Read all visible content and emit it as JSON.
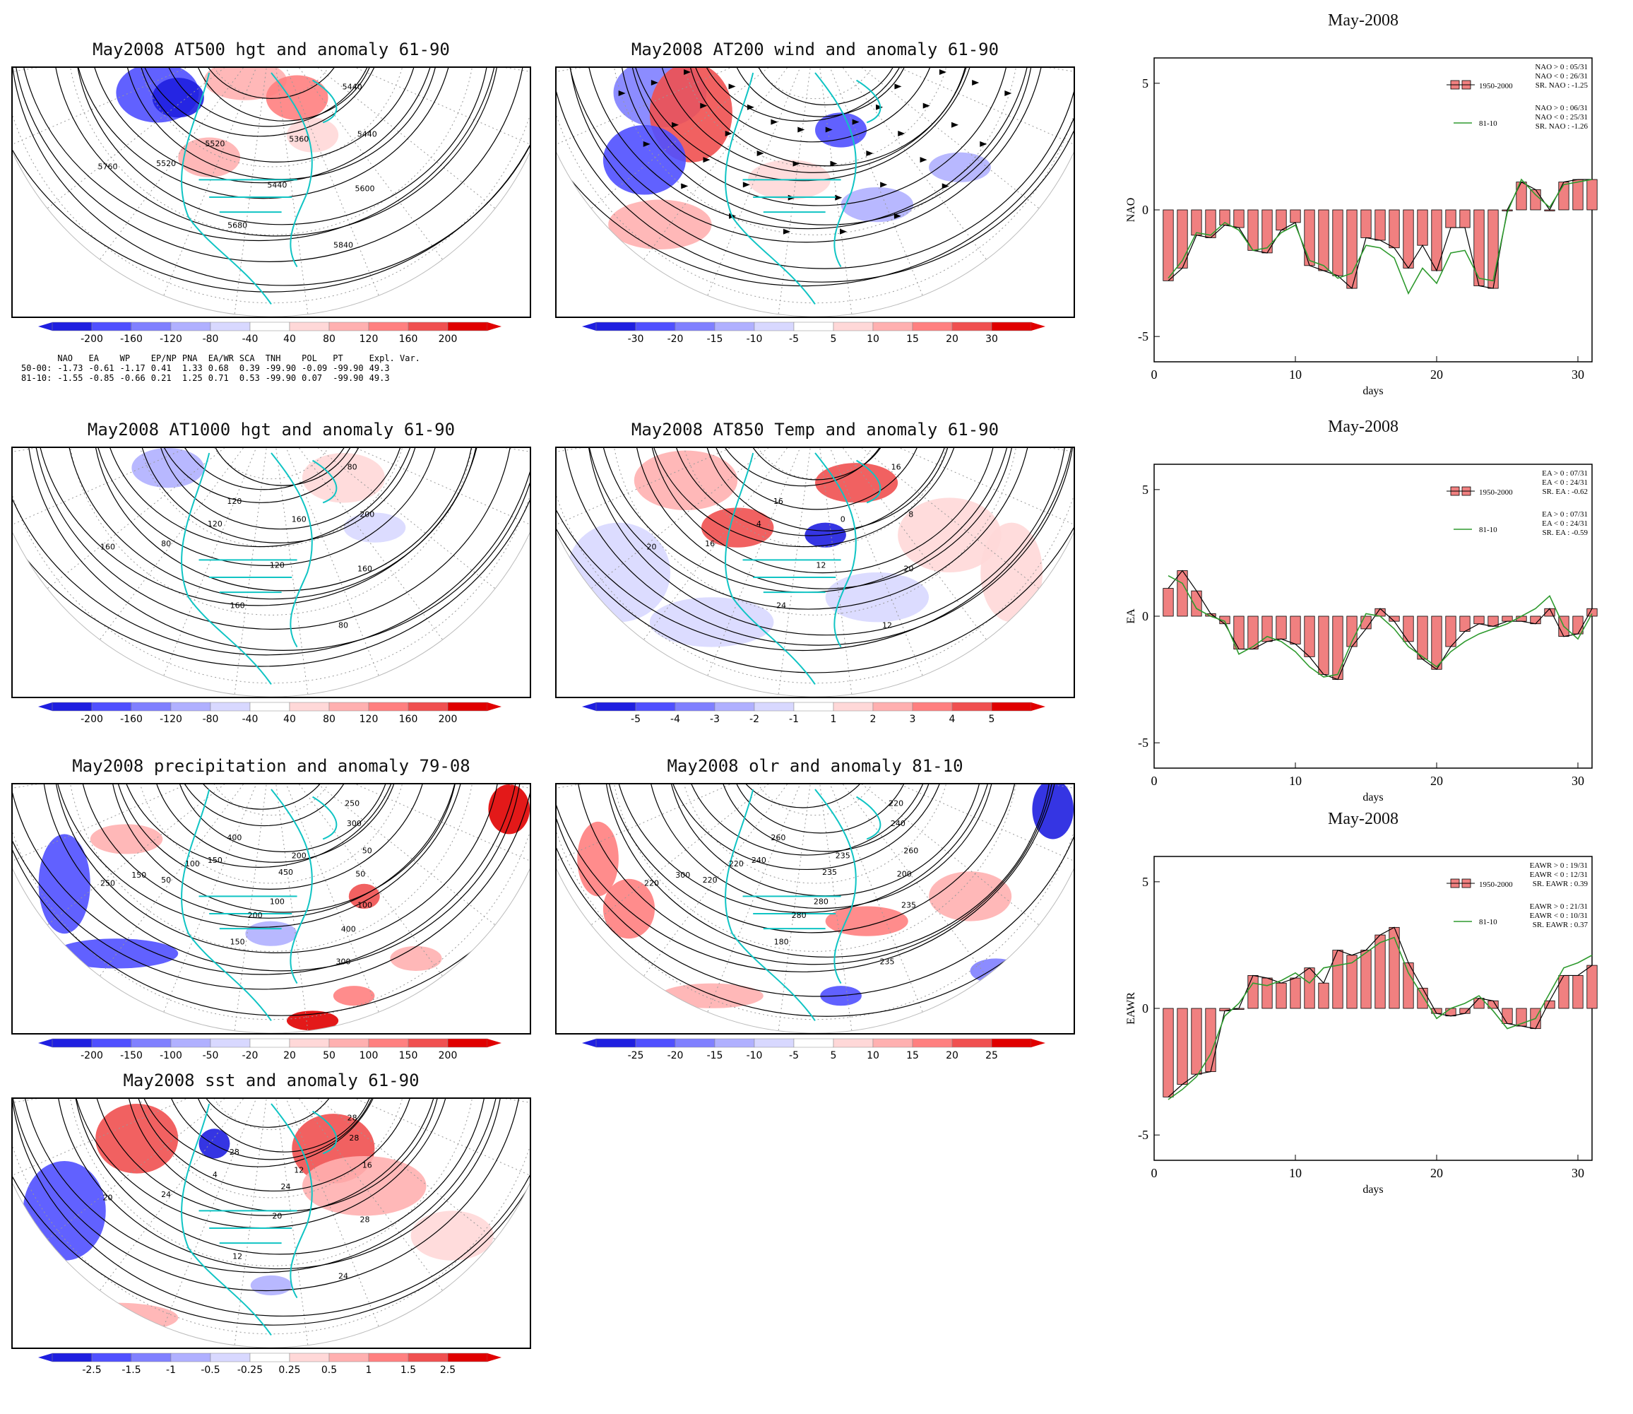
{
  "maps": [
    {
      "id": "hgt500",
      "title": "May2008 AT500 hgt and anomaly 61-90",
      "contours": [
        "5440",
        "5360",
        "5520",
        "5440",
        "5440",
        "5520",
        "5600",
        "5680",
        "5760",
        "5840"
      ],
      "colorbar": {
        "labels": [
          "-200",
          "-160",
          "-120",
          "-80",
          "-40",
          "40",
          "80",
          "120",
          "160",
          "200"
        ]
      }
    },
    {
      "id": "wind200",
      "title": "May2008 AT200 wind and anomaly 61-90",
      "contours": [],
      "colorbar": {
        "labels": [
          "-30",
          "-20",
          "-15",
          "-10",
          "-5",
          "5",
          "10",
          "15",
          "20",
          "30"
        ]
      }
    },
    {
      "id": "hgt1000",
      "title": "May2008 AT1000 hgt and anomaly 61-90",
      "contours": [
        "80",
        "160",
        "120",
        "200",
        "120",
        "80",
        "160",
        "160",
        "160",
        "80",
        "120"
      ],
      "colorbar": {
        "labels": [
          "-200",
          "-160",
          "-120",
          "-80",
          "-40",
          "40",
          "80",
          "120",
          "160",
          "200"
        ]
      }
    },
    {
      "id": "t850",
      "title": "May2008 AT850 Temp and anomaly 61-90",
      "contours": [
        "16",
        "0",
        "4",
        "8",
        "12",
        "16",
        "20",
        "24",
        "20",
        "12",
        "16"
      ],
      "colorbar": {
        "labels": [
          "-5",
          "-4",
          "-3",
          "-2",
          "-1",
          "1",
          "2",
          "3",
          "4",
          "5"
        ]
      }
    },
    {
      "id": "prcp",
      "title": "May2008 precipitation and anomaly 79-08",
      "contours": [
        "250",
        "200",
        "150",
        "50",
        "100",
        "50",
        "100",
        "150",
        "250",
        "300",
        "400",
        "300",
        "450",
        "100",
        "50",
        "200",
        "150",
        "400"
      ],
      "colorbar": {
        "labels": [
          "-200",
          "-150",
          "-100",
          "-50",
          "-20",
          "20",
          "50",
          "100",
          "150",
          "200"
        ]
      }
    },
    {
      "id": "olr",
      "title": "May2008 olr and anomaly 81-10",
      "contours": [
        "220",
        "235",
        "240",
        "260",
        "280",
        "220",
        "235",
        "180",
        "220",
        "235",
        "260",
        "240",
        "235",
        "220",
        "200",
        "280",
        "300"
      ],
      "colorbar": {
        "labels": [
          "-25",
          "-20",
          "-15",
          "-10",
          "-5",
          "5",
          "10",
          "15",
          "20",
          "25"
        ]
      }
    },
    {
      "id": "sst",
      "title": "May2008 sst and anomaly 61-90",
      "contours": [
        "28",
        "12",
        "4",
        "16",
        "20",
        "24",
        "28",
        "12",
        "20",
        "24",
        "28",
        "28",
        "24"
      ],
      "colorbar": {
        "labels": [
          "-2.5",
          "-1.5",
          "-1",
          "-0.5",
          "-0.25",
          "0.25",
          "0.5",
          "1",
          "1.5",
          "2.5"
        ]
      }
    }
  ],
  "teleconnection_table": {
    "headers": [
      "",
      "NAO",
      "EA",
      "WP",
      "EP/NP",
      "PNA",
      "EA/WR",
      "SCA",
      "TNH",
      "POL",
      "PT",
      "Expl. Var."
    ],
    "rows": [
      [
        "50-00:",
        "-1.73",
        "-0.61",
        "-1.17",
        "0.41",
        "1.33",
        "0.68",
        "0.39",
        "-99.90",
        "-0.09",
        "-99.90",
        "49.3"
      ],
      [
        "81-10:",
        "-1.55",
        "-0.85",
        "-0.66",
        "0.21",
        "1.25",
        "0.71",
        "0.53",
        "-99.90",
        "0.07",
        "-99.90",
        "49.3"
      ]
    ]
  },
  "colors": {
    "blue_dark": "#1f1fe0",
    "blue_light": "#d8d8ff",
    "red_dark": "#e00000",
    "red_light": "#ffd8d8",
    "coast": "#10c4c4",
    "bar": "#f08080",
    "line81": "#2e9a2e"
  },
  "chart_data": [
    {
      "type": "bar",
      "title": "May-2008",
      "ylabel": "NAO",
      "xlabel": "days",
      "xlim": [
        0,
        31
      ],
      "ylim": [
        -6,
        6
      ],
      "yticks": [
        "5",
        "0",
        "-5"
      ],
      "xticks": [
        "0",
        "10",
        "20",
        "30"
      ],
      "legend": {
        "bar_label": "1950-2000",
        "line_label": "81-10",
        "bar_stats": [
          "NAO > 0 : 05/31",
          "NAO < 0 : 26/31",
          "SR. NAO : -1.25"
        ],
        "line_stats": [
          "NAO > 0 : 06/31",
          "NAO < 0 : 25/31",
          "SR. NAO : -1.26"
        ]
      },
      "series": [
        {
          "name": "1950-2000",
          "x": [
            1,
            2,
            3,
            4,
            5,
            6,
            7,
            8,
            9,
            10,
            11,
            12,
            13,
            14,
            15,
            16,
            17,
            18,
            19,
            20,
            21,
            22,
            23,
            24,
            25,
            26,
            27,
            28,
            29,
            30,
            31
          ],
          "values": [
            -2.8,
            -2.3,
            -1.0,
            -1.1,
            -0.6,
            -0.7,
            -1.6,
            -1.7,
            -0.8,
            -0.5,
            -2.2,
            -2.4,
            -2.6,
            -3.1,
            -1.1,
            -1.2,
            -1.5,
            -2.3,
            -1.4,
            -2.4,
            -0.7,
            -0.7,
            -3.0,
            -3.1,
            0.0,
            1.1,
            0.8,
            0.0,
            1.1,
            1.2,
            1.2
          ]
        },
        {
          "name": "81-10",
          "x": [
            1,
            2,
            3,
            4,
            5,
            6,
            7,
            8,
            9,
            10,
            11,
            12,
            13,
            14,
            15,
            16,
            17,
            18,
            19,
            20,
            21,
            22,
            23,
            24,
            25,
            26,
            27,
            28,
            29,
            30,
            31
          ],
          "values": [
            -2.7,
            -2.0,
            -0.9,
            -1.0,
            -0.5,
            -0.8,
            -1.6,
            -1.5,
            -0.9,
            -0.6,
            -2.0,
            -2.2,
            -2.7,
            -2.5,
            -1.4,
            -1.5,
            -1.9,
            -3.3,
            -2.3,
            -2.9,
            -1.7,
            -1.6,
            -2.7,
            -2.8,
            -0.1,
            1.2,
            0.6,
            0.1,
            1.0,
            1.1,
            1.2
          ]
        }
      ]
    },
    {
      "type": "bar",
      "title": "May-2008",
      "ylabel": "EA",
      "xlabel": "days",
      "xlim": [
        0,
        31
      ],
      "ylim": [
        -6,
        6
      ],
      "yticks": [
        "5",
        "0",
        "-5"
      ],
      "xticks": [
        "0",
        "10",
        "20",
        "30"
      ],
      "legend": {
        "bar_label": "1950-2000",
        "line_label": "81-10",
        "bar_stats": [
          "EA > 0 : 07/31",
          "EA < 0 : 24/31",
          "SR. EA : -0.62"
        ],
        "line_stats": [
          "EA > 0 : 07/31",
          "EA < 0 : 24/31",
          "SR. EA : -0.59"
        ]
      },
      "series": [
        {
          "name": "1950-2000",
          "x": [
            1,
            2,
            3,
            4,
            5,
            6,
            7,
            8,
            9,
            10,
            11,
            12,
            13,
            14,
            15,
            16,
            17,
            18,
            19,
            20,
            21,
            22,
            23,
            24,
            25,
            26,
            27,
            28,
            29,
            30,
            31
          ],
          "values": [
            1.1,
            1.8,
            1.0,
            0.1,
            -0.3,
            -1.3,
            -1.3,
            -1.0,
            -0.9,
            -1.1,
            -1.6,
            -2.3,
            -2.5,
            -1.2,
            -0.5,
            0.3,
            -0.2,
            -1.0,
            -1.7,
            -2.1,
            -1.2,
            -0.6,
            -0.3,
            -0.4,
            -0.2,
            -0.2,
            -0.3,
            0.3,
            -0.8,
            -0.7,
            0.3
          ]
        },
        {
          "name": "81-10",
          "x": [
            1,
            2,
            3,
            4,
            5,
            6,
            7,
            8,
            9,
            10,
            11,
            12,
            13,
            14,
            15,
            16,
            17,
            18,
            19,
            20,
            21,
            22,
            23,
            24,
            25,
            26,
            27,
            28,
            29,
            30,
            31
          ],
          "values": [
            1.6,
            1.3,
            0.3,
            0.0,
            -0.2,
            -1.5,
            -1.2,
            -0.8,
            -1.0,
            -1.4,
            -2.0,
            -2.4,
            -2.3,
            -1.0,
            0.1,
            0.0,
            -0.5,
            -1.2,
            -1.6,
            -2.0,
            -1.4,
            -1.0,
            -0.7,
            -0.5,
            -0.3,
            0.0,
            0.3,
            0.8,
            -0.4,
            -0.9,
            0.1
          ]
        }
      ]
    },
    {
      "type": "bar",
      "title": "May-2008",
      "ylabel": "EAWR",
      "xlabel": "days",
      "xlim": [
        0,
        31
      ],
      "ylim": [
        -6,
        6
      ],
      "yticks": [
        "5",
        "0",
        "-5"
      ],
      "xticks": [
        "0",
        "10",
        "20",
        "30"
      ],
      "legend": {
        "bar_label": "1950-2000",
        "line_label": "81-10",
        "bar_stats": [
          "EAWR > 0 : 19/31",
          "EAWR < 0 : 12/31",
          "SR. EAWR : 0.39"
        ],
        "line_stats": [
          "EAWR > 0 : 21/31",
          "EAWR < 0 : 10/31",
          "SR. EAWR : 0.37"
        ]
      },
      "series": [
        {
          "name": "1950-2000",
          "x": [
            1,
            2,
            3,
            4,
            5,
            6,
            7,
            8,
            9,
            10,
            11,
            12,
            13,
            14,
            15,
            16,
            17,
            18,
            19,
            20,
            21,
            22,
            23,
            24,
            25,
            26,
            27,
            28,
            29,
            30,
            31
          ],
          "values": [
            -3.5,
            -3.0,
            -2.6,
            -2.5,
            -0.1,
            0.0,
            1.3,
            1.2,
            1.0,
            1.2,
            1.6,
            1.0,
            2.3,
            2.1,
            2.3,
            2.9,
            3.2,
            1.8,
            0.8,
            -0.2,
            -0.3,
            -0.2,
            0.4,
            0.3,
            -0.6,
            -0.7,
            -0.8,
            0.3,
            1.3,
            1.3,
            1.7
          ]
        },
        {
          "name": "81-10",
          "x": [
            1,
            2,
            3,
            4,
            5,
            6,
            7,
            8,
            9,
            10,
            11,
            12,
            13,
            14,
            15,
            16,
            17,
            18,
            19,
            20,
            21,
            22,
            23,
            24,
            25,
            26,
            27,
            28,
            29,
            30,
            31
          ],
          "values": [
            -3.6,
            -3.2,
            -2.7,
            -1.8,
            -0.3,
            0.2,
            1.0,
            0.9,
            1.1,
            1.4,
            1.0,
            1.6,
            1.7,
            1.8,
            2.2,
            2.6,
            2.8,
            1.4,
            0.5,
            -0.4,
            0.0,
            0.2,
            0.5,
            -0.1,
            -0.8,
            -0.6,
            -0.4,
            0.6,
            1.6,
            1.8,
            2.1
          ]
        }
      ]
    }
  ]
}
